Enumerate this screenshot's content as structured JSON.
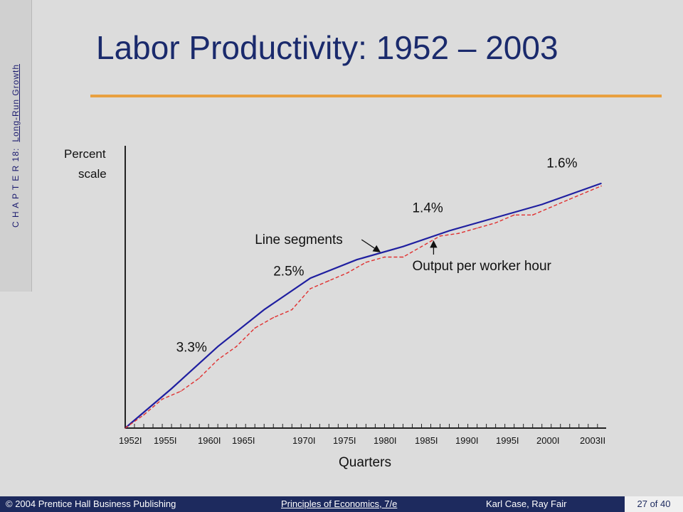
{
  "slide": {
    "title": "Labor Productivity:  1952 – 2003",
    "sidebar": {
      "chapter": "C H A P T E R  18:",
      "topic": "Long-Run Growth"
    },
    "footer": {
      "publisher": "© 2004 Prentice Hall Business Publishing",
      "book": "Principles of Economics, 7/e",
      "authors": "Karl Case, Ray Fair",
      "page": "27 of 40"
    }
  },
  "chart_data": {
    "type": "line",
    "title": "",
    "xlabel": "Quarters",
    "ylabel": "Percent\nscale",
    "y_scale": "log",
    "grid": false,
    "categories": [
      "1952I",
      "1955I",
      "1960I",
      "1965I",
      "1970I",
      "1975I",
      "1980I",
      "1985I",
      "1990I",
      "1995I",
      "2000I",
      "2003II"
    ],
    "series": [
      {
        "name": "Line segments",
        "style": "solid",
        "color": "#1f1fa0",
        "x": [
          1952.0,
          1957.0,
          1962.0,
          1967.0,
          1972.0,
          1977.0,
          1982.0,
          1987.0,
          1992.0,
          1997.0,
          2003.4
        ],
        "values": [
          0,
          15,
          31,
          45,
          57,
          64,
          69,
          75,
          80,
          85,
          93
        ]
      },
      {
        "name": "Output per worker hour",
        "style": "dashed",
        "color": "#e03030",
        "x": [
          1952.0,
          1954.0,
          1956.0,
          1958.0,
          1960.0,
          1962.0,
          1964.0,
          1966.0,
          1968.0,
          1970.0,
          1972.0,
          1974.0,
          1976.0,
          1978.0,
          1980.0,
          1982.0,
          1984.0,
          1986.0,
          1988.0,
          1990.0,
          1992.0,
          1994.0,
          1996.0,
          1998.0,
          2000.0,
          2003.4
        ],
        "values": [
          0,
          5,
          11,
          14,
          19,
          26,
          31,
          38,
          42,
          45,
          53,
          56,
          59,
          63,
          65,
          65,
          69,
          73,
          74,
          76,
          78,
          81,
          81,
          84,
          87,
          92
        ]
      }
    ],
    "annotations": [
      {
        "text": "3.3%",
        "x": 1957.5,
        "y": 29
      },
      {
        "text": "2.5%",
        "x": 1968.0,
        "y": 58
      },
      {
        "text": "1.4%",
        "x": 1983.0,
        "y": 82
      },
      {
        "text": "1.6%",
        "x": 1997.5,
        "y": 99
      },
      {
        "text": "Line segments",
        "x": 1966.0,
        "y": 70,
        "arrow_to_x": 1979.5,
        "arrow_to_y": 67
      },
      {
        "text": "Output per worker hour",
        "x": 1983.0,
        "y": 60,
        "arrow_to_x": 1985.3,
        "arrow_to_y": 71
      }
    ],
    "xlim": [
      1952,
      2003.4
    ],
    "ylim": [
      0,
      100
    ]
  }
}
